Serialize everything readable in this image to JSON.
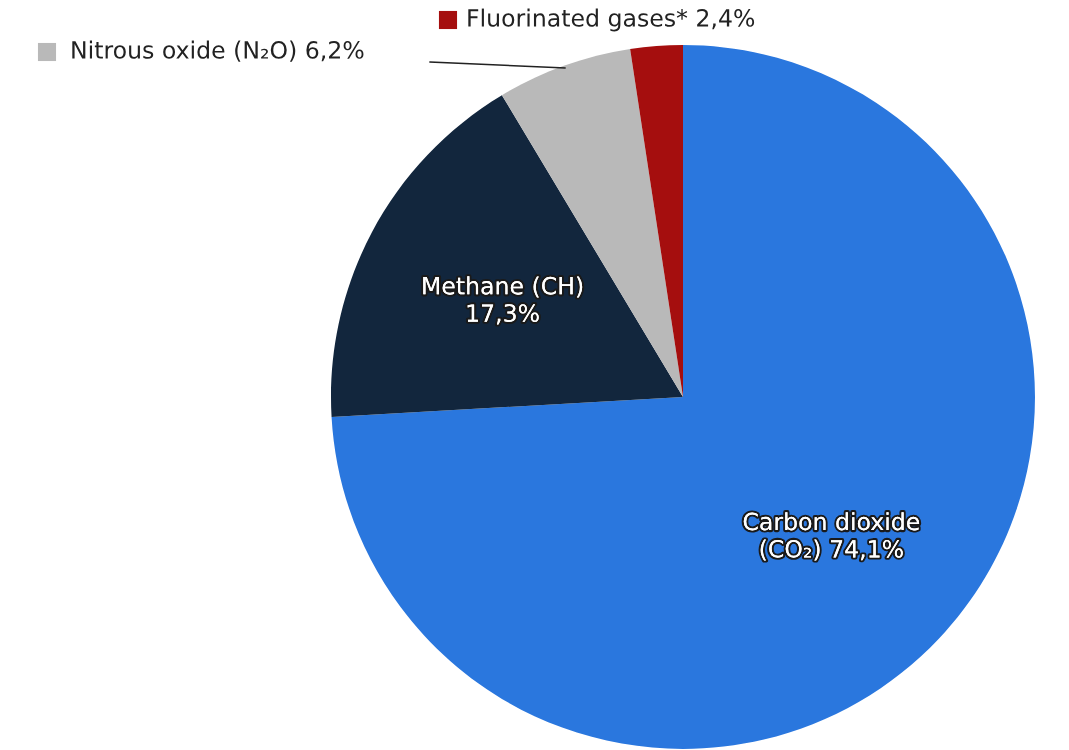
{
  "chart_data": {
    "type": "pie",
    "categories": [
      "Carbon dioxide\n(CO₂)",
      "Methane (CH)",
      "Nitrous oxide (N₂O)",
      "Fluorinated gases*"
    ],
    "values": [
      74.1,
      17.3,
      6.2,
      2.4
    ],
    "colors": [
      "#2a77de",
      "#12263d",
      "#b9b9b9",
      "#a50e0e"
    ],
    "value_labels": [
      "74,1%",
      "17,3%",
      "6,2%",
      "2,4%"
    ],
    "legend": "top"
  }
}
